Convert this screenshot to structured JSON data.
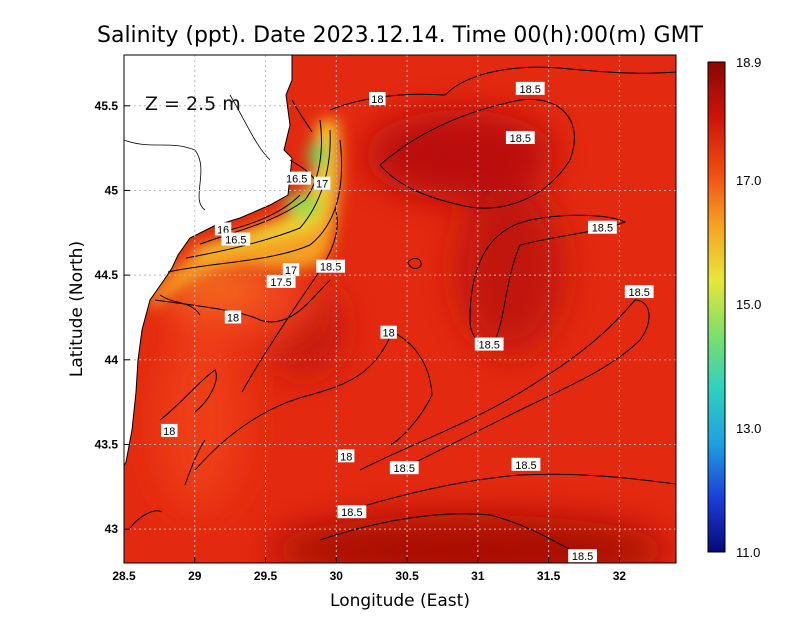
{
  "chart_data": {
    "type": "heatmap",
    "title": "Salinity (ppt). Date 2023.12.14. Time 00(h):00(m) GMT",
    "xlabel": "Longitude (East)",
    "ylabel": "Latitude (North)",
    "depth_label": "Z = 2.5 m",
    "xlim": [
      28.5,
      32.4
    ],
    "ylim": [
      42.8,
      45.8
    ],
    "x_ticks": [
      {
        "value": 28.5,
        "label": "28.5"
      },
      {
        "value": 29,
        "label": "29"
      },
      {
        "value": 29.5,
        "label": "29.5"
      },
      {
        "value": 30,
        "label": "30"
      },
      {
        "value": 30.5,
        "label": "30.5"
      },
      {
        "value": 31,
        "label": "31"
      },
      {
        "value": 31.5,
        "label": "31.5"
      },
      {
        "value": 32,
        "label": "32"
      }
    ],
    "y_ticks": [
      {
        "value": 43,
        "label": "43"
      },
      {
        "value": 43.5,
        "label": "43.5"
      },
      {
        "value": 44,
        "label": "44"
      },
      {
        "value": 44.5,
        "label": "44.5"
      },
      {
        "value": 45,
        "label": "45"
      },
      {
        "value": 45.5,
        "label": "45.5"
      }
    ],
    "grid": true,
    "colorbar": {
      "min": 11.0,
      "max": 18.9,
      "ticks": [
        {
          "value": 18.9,
          "label": "18.9"
        },
        {
          "value": 17.0,
          "label": "17.0"
        },
        {
          "value": 15.0,
          "label": "15.0"
        },
        {
          "value": 13.0,
          "label": "13.0"
        },
        {
          "value": 11.0,
          "label": "11.0"
        }
      ],
      "colors": [
        "#08087a",
        "#1a3fd8",
        "#1fa0e0",
        "#30d0c0",
        "#7de06a",
        "#e8e63a",
        "#f6a224",
        "#f04a10",
        "#cc1408",
        "#8a0606"
      ]
    },
    "colors": {
      "sea_default": "#e32a10",
      "sea_dark": "#b40f08",
      "land": "#ffffff",
      "coast": "#000000",
      "grid": "#bdbdbd"
    },
    "contour_labels": [
      {
        "text": "18",
        "lon": 30.29,
        "lat": 45.54
      },
      {
        "text": "18.5",
        "lon": 31.37,
        "lat": 45.6
      },
      {
        "text": "18.5",
        "lon": 31.3,
        "lat": 45.31
      },
      {
        "text": "16.5",
        "lon": 29.72,
        "lat": 45.07
      },
      {
        "text": "17",
        "lon": 29.9,
        "lat": 45.04
      },
      {
        "text": "16",
        "lon": 29.2,
        "lat": 44.77
      },
      {
        "text": "16.5",
        "lon": 29.29,
        "lat": 44.71
      },
      {
        "text": "18.5",
        "lon": 31.88,
        "lat": 44.78
      },
      {
        "text": "17",
        "lon": 29.68,
        "lat": 44.53
      },
      {
        "text": "18.5",
        "lon": 29.96,
        "lat": 44.55
      },
      {
        "text": "17.5",
        "lon": 29.61,
        "lat": 44.46
      },
      {
        "text": "18.5",
        "lon": 32.14,
        "lat": 44.4
      },
      {
        "text": "18",
        "lon": 29.27,
        "lat": 44.25
      },
      {
        "text": "18",
        "lon": 30.37,
        "lat": 44.16
      },
      {
        "text": "18.5",
        "lon": 31.08,
        "lat": 44.09
      },
      {
        "text": "18",
        "lon": 28.82,
        "lat": 43.58
      },
      {
        "text": "18",
        "lon": 30.07,
        "lat": 43.43
      },
      {
        "text": "18.5",
        "lon": 30.48,
        "lat": 43.36
      },
      {
        "text": "18.5",
        "lon": 31.34,
        "lat": 43.38
      },
      {
        "text": "18.5",
        "lon": 30.11,
        "lat": 43.1
      },
      {
        "text": "18.5",
        "lon": 31.74,
        "lat": 42.84
      }
    ]
  }
}
